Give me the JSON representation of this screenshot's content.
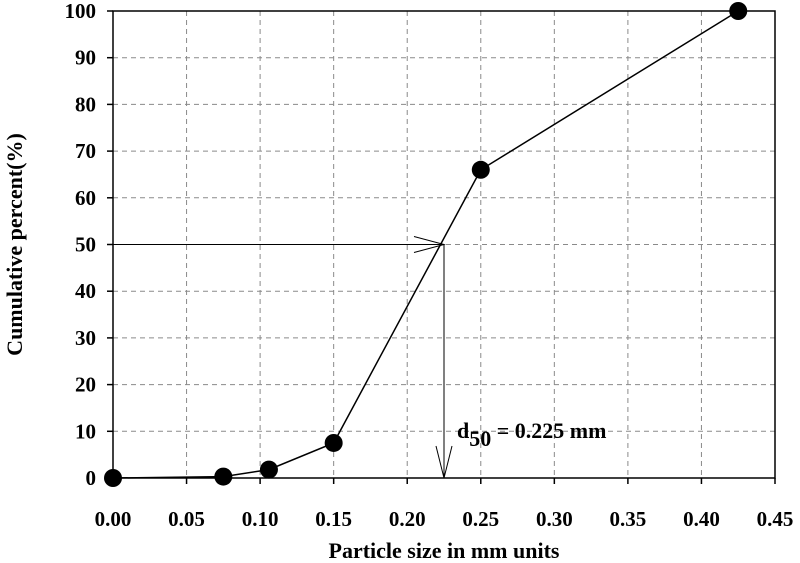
{
  "chart_data": {
    "type": "scatter",
    "title": "",
    "xlabel": "Particle size in mm units",
    "ylabel": "Cumulative percent(%)",
    "xlim": [
      0,
      0.45
    ],
    "ylim": [
      0,
      100
    ],
    "grid": true,
    "x_ticks": [
      "0.00",
      "0.05",
      "0.10",
      "0.15",
      "0.20",
      "0.25",
      "0.30",
      "0.35",
      "0.40",
      "0.45"
    ],
    "y_ticks": [
      "0",
      "10",
      "20",
      "30",
      "40",
      "50",
      "60",
      "70",
      "80",
      "90",
      "100"
    ],
    "series": [
      {
        "x": [
          0.0,
          0.075,
          0.106,
          0.15,
          0.25,
          0.425
        ],
        "y": [
          0,
          0.3,
          1.8,
          7.5,
          66,
          100
        ],
        "marker": "circle",
        "line": true,
        "color": "#000000"
      }
    ],
    "annotations": {
      "d50_value": 0.225,
      "d50_percent": 50,
      "label_main": "d",
      "label_sub": "50",
      "label_rest": " = 0.225 mm"
    }
  }
}
